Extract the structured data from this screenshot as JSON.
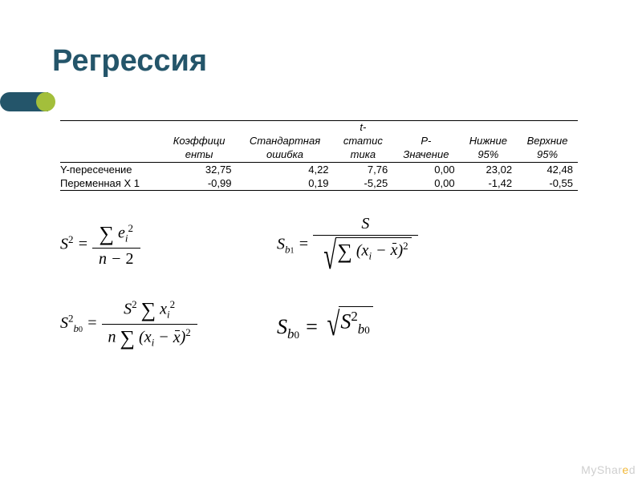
{
  "title": "Регрессия",
  "accent_color": "#24556a",
  "dot_color": "#a3bf3b",
  "table": {
    "type": "table",
    "font_size": 13,
    "border_color": "#000000",
    "columns": [
      {
        "l1": "",
        "l2": ""
      },
      {
        "l1": "Коэффици",
        "l2": "енты"
      },
      {
        "l1": "Стандартная",
        "l2": "ошибка"
      },
      {
        "l1": "t-",
        "l2": "статис",
        "l3": "тика"
      },
      {
        "l1": "P-",
        "l2": "Значение"
      },
      {
        "l1": "Нижние",
        "l2": "95%"
      },
      {
        "l1": "Верхние",
        "l2": "95%"
      }
    ],
    "rows": [
      {
        "label": "Y-пересечение",
        "v": [
          "32,75",
          "4,22",
          "7,76",
          "0,00",
          "23,02",
          "42,48"
        ]
      },
      {
        "label": "Переменная X 1",
        "v": [
          "-0,99",
          "0,19",
          "-5,25",
          "0,00",
          "-1,42",
          "-0,55"
        ]
      }
    ]
  },
  "formulas": {
    "s2": {
      "lhs": "S²",
      "num": "Σ eᵢ²",
      "den": "n − 2"
    },
    "sb1": {
      "lhs": "S_{b₁}",
      "num": "S",
      "den": "√(Σ (xᵢ − x̄)²)"
    },
    "sb0_2": {
      "lhs": "S²_{b₀}",
      "num": "S² Σ xᵢ²",
      "den": "n Σ (xᵢ − x̄)²"
    },
    "sb0": {
      "lhs": "S_{b₀}",
      "rhs": "√(S²_{b₀})"
    }
  },
  "watermark": "MyShared"
}
